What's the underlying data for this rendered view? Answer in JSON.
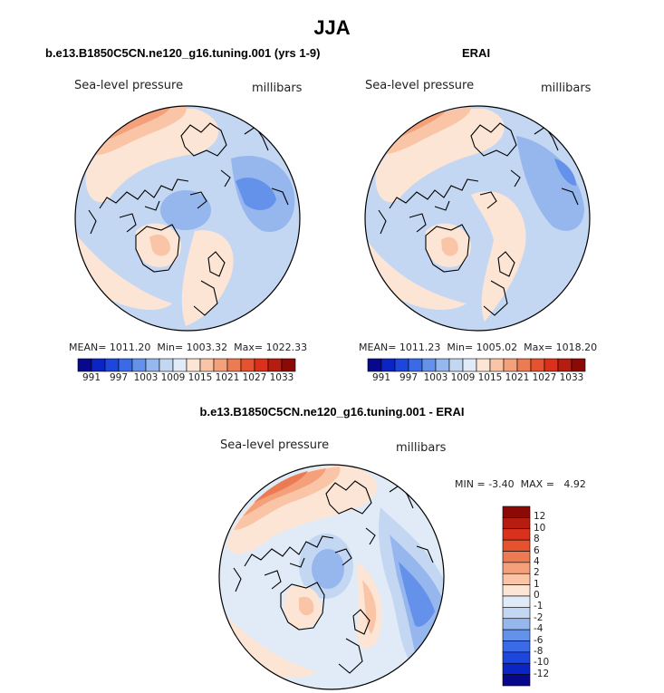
{
  "figure": {
    "season": "JJA"
  },
  "panels": [
    {
      "title": "b.e13.B1850C5CN.ne120_g16.tuning.001 (yrs 1-9)",
      "variable": "Sea-level pressure",
      "units": "millibars",
      "stats": {
        "mean_label": "MEAN=",
        "mean": "1011.20",
        "min_label": "Min=",
        "min": "1003.32",
        "max_label": "Max=",
        "max": "1022.33"
      }
    },
    {
      "title": "ERAI",
      "variable": "Sea-level pressure",
      "units": "millibars",
      "stats": {
        "mean_label": "MEAN=",
        "mean": "1011.23",
        "min_label": "Min=",
        "min": "1005.02",
        "max_label": "Max=",
        "max": "1018.20"
      }
    }
  ],
  "diff_panel": {
    "title": "b.e13.B1850C5CN.ne120_g16.tuning.001 - ERAI",
    "variable": "Sea-level pressure",
    "units": "millibars",
    "stats": {
      "min_label": "MIN =",
      "min": "-3.40",
      "max_label": "MAX =",
      "max": "4.92"
    }
  },
  "colorbar_abs": {
    "labels": [
      "991",
      "997",
      "1003",
      "1009",
      "1015",
      "1021",
      "1027",
      "1033"
    ],
    "colors": [
      "#08088c",
      "#0b24c4",
      "#1d46dc",
      "#3a6ae6",
      "#6491ea",
      "#96b6ee",
      "#c3d7f2",
      "#e0ebf7",
      "#fde5d6",
      "#f9c5a6",
      "#f4a07a",
      "#ec7a52",
      "#e4522f",
      "#d9311b",
      "#b71c10",
      "#8c0a06"
    ]
  },
  "colorbar_diff": {
    "labels": [
      "12",
      "10",
      "8",
      "6",
      "4",
      "2",
      "1",
      "0",
      "-1",
      "-2",
      "-4",
      "-6",
      "-8",
      "-10",
      "-12"
    ],
    "colors": [
      "#8c0a06",
      "#b71c10",
      "#d9311b",
      "#e4522f",
      "#ec7a52",
      "#f4a07a",
      "#f9c5a6",
      "#fde5d6",
      "#e0ebf7",
      "#c3d7f2",
      "#96b6ee",
      "#6491ea",
      "#3a6ae6",
      "#1d46dc",
      "#0b24c4",
      "#08088c"
    ]
  },
  "chart_data": [
    {
      "type": "heatmap",
      "title": "b.e13.B1850C5CN.ne120_g16.tuning.001 (yrs 1-9)",
      "variable": "Sea-level pressure",
      "units": "millibars",
      "projection": "north polar stereographic",
      "season": "JJA",
      "mean": 1011.2,
      "min": 1003.32,
      "max": 1022.33,
      "contour_levels": [
        991,
        994,
        997,
        1000,
        1003,
        1006,
        1009,
        1012,
        1015,
        1018,
        1021,
        1024,
        1027,
        1030,
        1033
      ]
    },
    {
      "type": "heatmap",
      "title": "ERAI",
      "variable": "Sea-level pressure",
      "units": "millibars",
      "projection": "north polar stereographic",
      "season": "JJA",
      "mean": 1011.23,
      "min": 1005.02,
      "max": 1018.2,
      "contour_levels": [
        991,
        994,
        997,
        1000,
        1003,
        1006,
        1009,
        1012,
        1015,
        1018,
        1021,
        1024,
        1027,
        1030,
        1033
      ]
    },
    {
      "type": "heatmap",
      "title": "b.e13.B1850C5CN.ne120_g16.tuning.001 - ERAI",
      "variable": "Sea-level pressure",
      "units": "millibars",
      "projection": "north polar stereographic",
      "season": "JJA",
      "min": -3.4,
      "max": 4.92,
      "contour_levels": [
        -12,
        -10,
        -8,
        -6,
        -4,
        -2,
        -1,
        0,
        1,
        2,
        4,
        6,
        8,
        10,
        12
      ]
    }
  ]
}
